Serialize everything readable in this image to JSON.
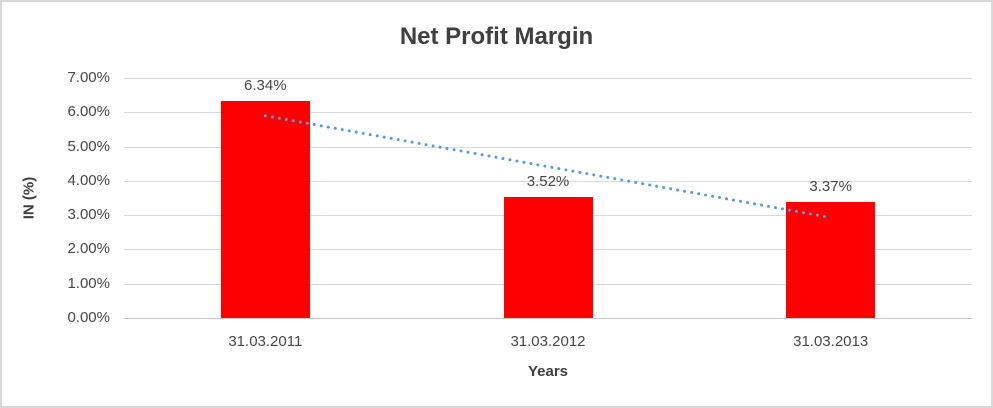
{
  "chart_data": {
    "type": "bar",
    "title": "Net Profit Margin",
    "xlabel": "Years",
    "ylabel": "IN (%)",
    "categories": [
      "31.03.2011",
      "31.03.2012",
      "31.03.2013"
    ],
    "values": [
      6.34,
      3.52,
      3.37
    ],
    "data_labels": [
      "6.34%",
      "3.52%",
      "3.37%"
    ],
    "ylim": [
      0,
      7
    ],
    "ytick_step": 1,
    "ytick_labels": [
      "0.00%",
      "1.00%",
      "2.00%",
      "3.00%",
      "4.00%",
      "5.00%",
      "6.00%",
      "7.00%"
    ],
    "grid": true,
    "legend": "none",
    "bar_color": "#ff0000",
    "trendline": {
      "type": "linear",
      "style": "dotted",
      "color": "#5b9bd5",
      "start_value": 5.9,
      "end_value": 2.93
    }
  }
}
